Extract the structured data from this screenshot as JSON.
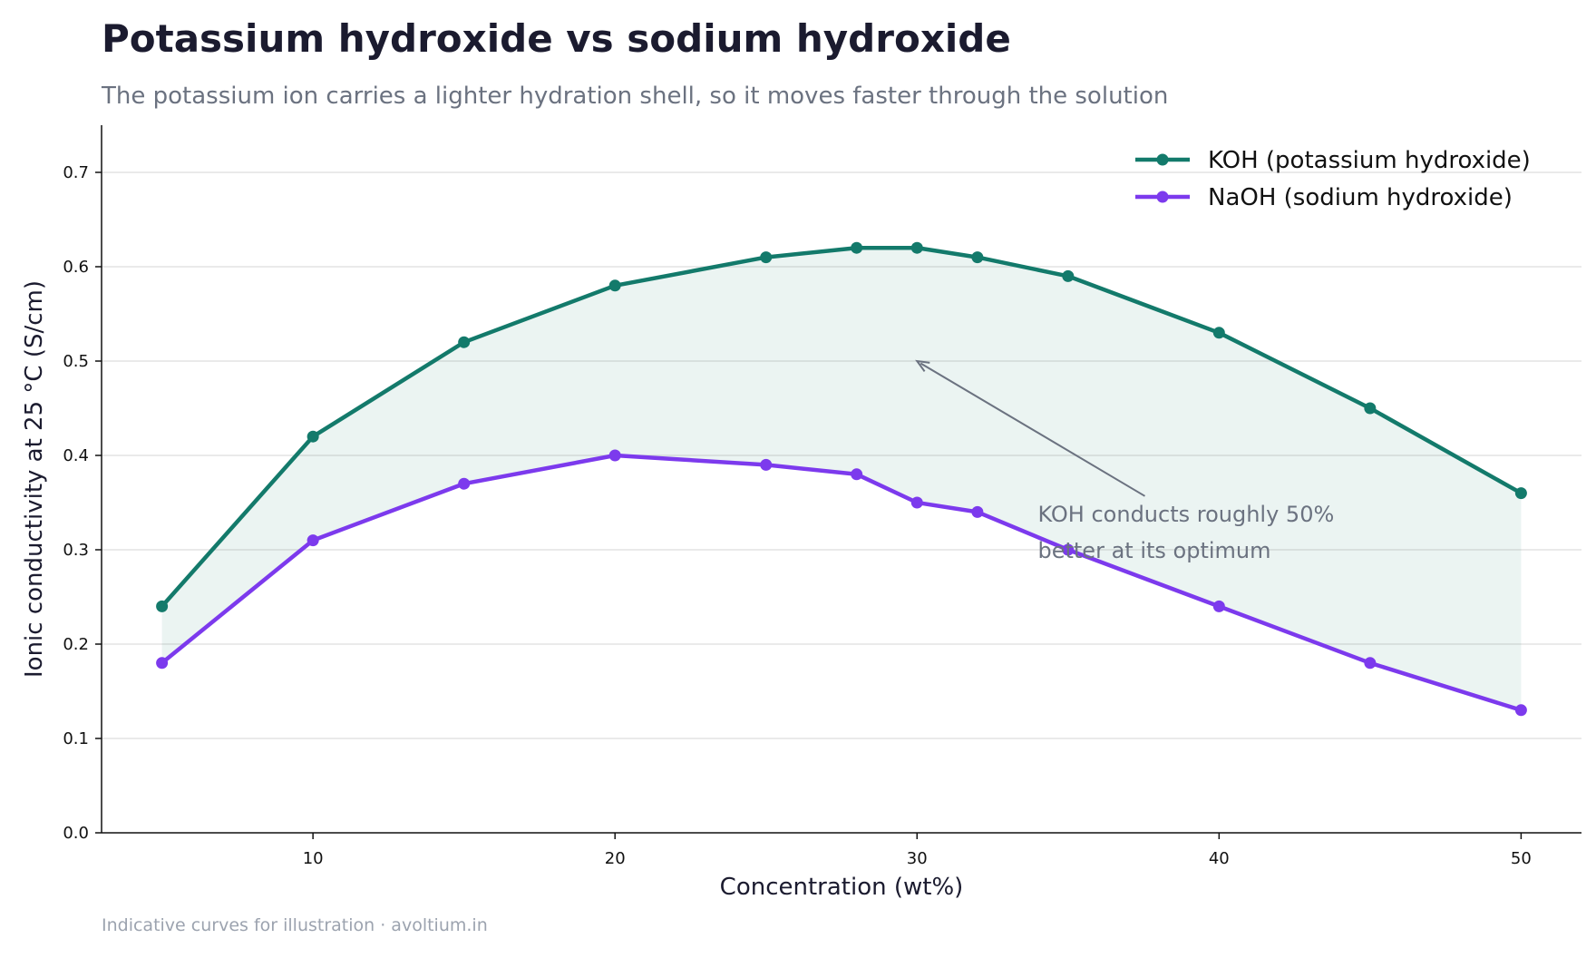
{
  "chart_data": {
    "type": "line",
    "title": "Potassium hydroxide vs sodium hydroxide",
    "subtitle": "The potassium ion carries a lighter hydration shell, so it moves faster through the solution",
    "xlabel": "Concentration (wt%)",
    "ylabel": "Ionic conductivity at 25 °C (S/cm)",
    "xlim": [
      3,
      52
    ],
    "ylim": [
      0,
      0.75
    ],
    "x_ticks": [
      10,
      20,
      30,
      40,
      50
    ],
    "y_ticks": [
      0.0,
      0.1,
      0.2,
      0.3,
      0.4,
      0.5,
      0.6,
      0.7
    ],
    "y_tick_labels": [
      "0.0",
      "0.1",
      "0.2",
      "0.3",
      "0.4",
      "0.5",
      "0.6",
      "0.7"
    ],
    "grid": "horizontal",
    "legend_position": "top-right",
    "fill_between_series": true,
    "series": [
      {
        "name": "KOH (potassium hydroxide)",
        "color": "#137a6b",
        "x": [
          5,
          10,
          15,
          20,
          25,
          28,
          30,
          32,
          35,
          40,
          45,
          50
        ],
        "values": [
          0.24,
          0.42,
          0.52,
          0.58,
          0.61,
          0.62,
          0.62,
          0.61,
          0.59,
          0.53,
          0.45,
          0.36
        ]
      },
      {
        "name": "NaOH (sodium hydroxide)",
        "color": "#7c3aed",
        "x": [
          5,
          10,
          15,
          20,
          25,
          28,
          30,
          32,
          35,
          40,
          45,
          50
        ],
        "values": [
          0.18,
          0.31,
          0.37,
          0.4,
          0.39,
          0.38,
          0.35,
          0.34,
          0.3,
          0.24,
          0.18,
          0.13
        ]
      }
    ],
    "annotation": {
      "lines": [
        "KOH conducts roughly 50%",
        "better at its optimum"
      ],
      "text_x": 34,
      "text_y": 0.33,
      "arrow_x": 30,
      "arrow_y": 0.5
    },
    "fill_color": "#137a6b",
    "annotation_color": "#6b7280"
  },
  "footer": "Indicative curves for illustration  ·  avoltium.in"
}
